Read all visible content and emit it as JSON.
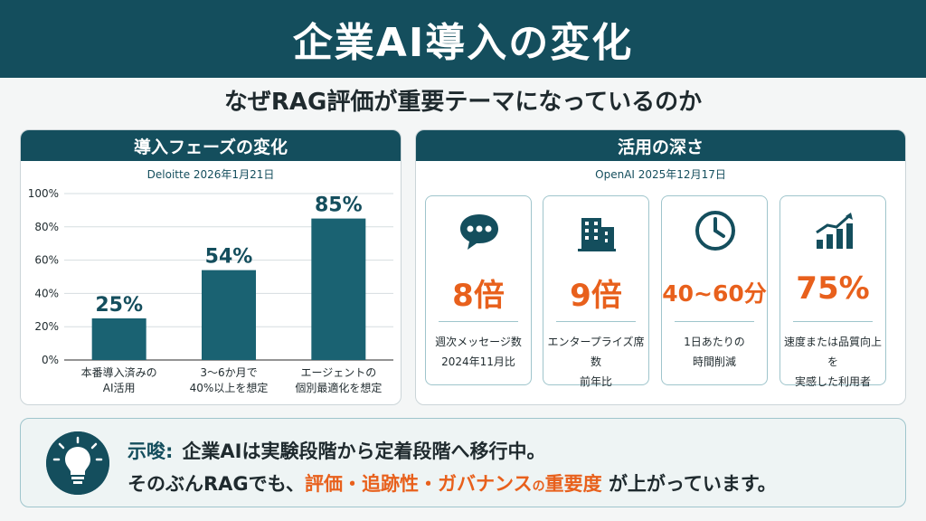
{
  "header": {
    "title": "企業AI導入の変化"
  },
  "subtitle": "なぜRAG評価が重要テーマになっているのか",
  "left_panel": {
    "title": "導入フェーズの変化",
    "source": "Deloitte 2026年1月21日"
  },
  "right_panel": {
    "title": "活用の深さ",
    "source": "OpenAI 2025年12月17日",
    "stats": [
      {
        "icon": "chat-bubble-icon",
        "value": "8倍",
        "label": "週次メッセージ数\n2024年11月比"
      },
      {
        "icon": "building-icon",
        "value": "9倍",
        "label": "エンタープライズ席数\n前年比"
      },
      {
        "icon": "clock-icon",
        "value": "40~60分",
        "label": "1日あたりの\n時間削減"
      },
      {
        "icon": "growth-chart-icon",
        "value": "75%",
        "label": "速度または品質向上を\n実感した利用者"
      }
    ]
  },
  "chart_data": {
    "type": "bar",
    "categories": [
      "本番導入済みの\nAI活用",
      "3〜6か月で\n40%以上を想定",
      "エージェントの\n個別最適化を想定"
    ],
    "values": [
      25,
      54,
      85
    ],
    "value_labels": [
      "25%",
      "54%",
      "85%"
    ],
    "ylim": [
      0,
      100
    ],
    "yticks": [
      "0%",
      "20%",
      "40%",
      "60%",
      "80%",
      "100%"
    ],
    "grid": true,
    "color": "#1a6272"
  },
  "implication": {
    "tag": "示唆:",
    "line1": "企業AIは実験段階から定着段階へ移行中。",
    "line2_prefix": "そのぶんRAGでも、",
    "line2_highlight": "評価・追跡性・ガバナンス",
    "line2_particle": "の",
    "line2_highlight2": "重要度",
    "line2_suffix": "が上がっています。"
  },
  "colors": {
    "primary": "#144e5d",
    "accent": "#e8601c",
    "bar": "#1a6272"
  }
}
